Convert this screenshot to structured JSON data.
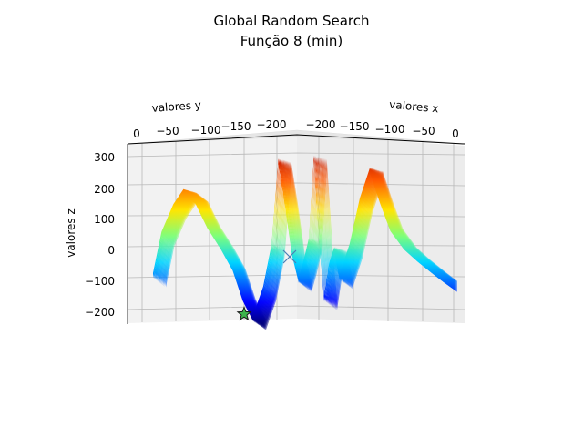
{
  "chart_data": {
    "type": "surface3d",
    "title": "Global Random Search",
    "subtitle": "Função 8 (min)",
    "xlabel": "valores x",
    "ylabel": "valores y",
    "zlabel": "valores z",
    "x_ticks": [
      "−200",
      "−150",
      "−100",
      "−50",
      "0"
    ],
    "y_ticks": [
      "0",
      "−50",
      "−100",
      "−150",
      "−200"
    ],
    "z_ticks": [
      "300",
      "200",
      "100",
      "0",
      "−100",
      "−200"
    ],
    "xlim": [
      -250,
      0
    ],
    "ylim": [
      -250,
      0
    ],
    "zlim": [
      -240,
      330
    ],
    "grid": true,
    "colormap": "jet",
    "markers": [
      {
        "name": "best-found",
        "shape": "star",
        "color": "#3cb44b",
        "x": -110,
        "y": -140,
        "z": -215
      },
      {
        "name": "current-point",
        "shape": "x",
        "color": "#4a7fb5",
        "x": -190,
        "y": -200,
        "z": -30
      }
    ],
    "profile": [
      {
        "x": 0,
        "z": -75
      },
      {
        "x": 5,
        "z": 60
      },
      {
        "x": 12,
        "z": 150
      },
      {
        "x": 18,
        "z": 200
      },
      {
        "x": 25,
        "z": 170
      },
      {
        "x": 32,
        "z": 90
      },
      {
        "x": 40,
        "z": 20
      },
      {
        "x": 47,
        "z": -50
      },
      {
        "x": 53,
        "z": -150
      },
      {
        "x": 59,
        "z": -215
      },
      {
        "x": 65,
        "z": -120
      },
      {
        "x": 70,
        "z": 20
      },
      {
        "x": 74,
        "z": 300
      },
      {
        "x": 78,
        "z": 160
      },
      {
        "x": 82,
        "z": 0
      },
      {
        "x": 86,
        "z": -90
      },
      {
        "x": 89,
        "z": -30
      },
      {
        "x": 92,
        "z": 40
      },
      {
        "x": 95,
        "z": 310
      },
      {
        "x": 98,
        "z": 50
      },
      {
        "x": 101,
        "z": -150
      },
      {
        "x": 104,
        "z": -40
      },
      {
        "x": 107,
        "z": 10
      },
      {
        "x": 110,
        "z": -80
      },
      {
        "x": 116,
        "z": 20
      },
      {
        "x": 122,
        "z": 170
      },
      {
        "x": 128,
        "z": 270
      },
      {
        "x": 134,
        "z": 170
      },
      {
        "x": 140,
        "z": 80
      },
      {
        "x": 148,
        "z": 20
      },
      {
        "x": 156,
        "z": -20
      },
      {
        "x": 165,
        "z": -60
      },
      {
        "x": 172,
        "z": -90
      }
    ]
  }
}
